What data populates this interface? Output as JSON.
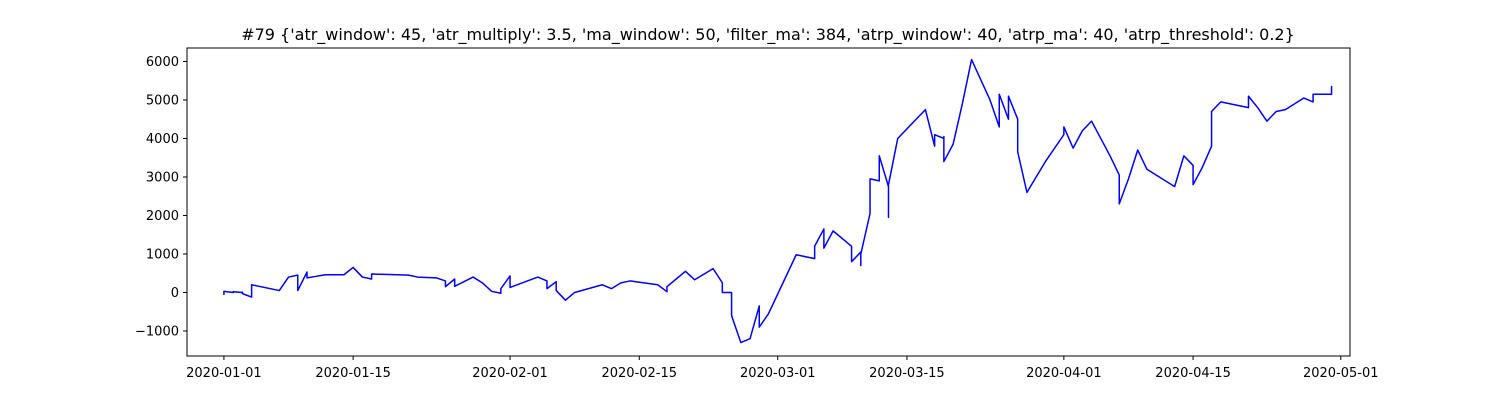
{
  "chart_data": {
    "type": "line",
    "title": "#79 {'atr_window': 45, 'atr_multiply': 3.5, 'ma_window': 50, 'filter_ma': 384, 'atrp_window': 40, 'atrp_ma': 40, 'atrp_threshold': 0.2}",
    "xlabel": "",
    "ylabel": "",
    "xlim": [
      "2019-12-28",
      "2020-05-02"
    ],
    "ylim": [
      -1650,
      6350
    ],
    "x_ticks": [
      "2020-01-01",
      "2020-01-15",
      "2020-02-01",
      "2020-02-15",
      "2020-03-01",
      "2020-03-15",
      "2020-04-01",
      "2020-04-15",
      "2020-05-01"
    ],
    "y_ticks": [
      -1000,
      0,
      1000,
      2000,
      3000,
      4000,
      5000,
      6000
    ],
    "grid": false,
    "series": [
      {
        "name": "",
        "color": "#0000ff",
        "points": [
          [
            "2020-01-01",
            0
          ],
          [
            "2020-01-01",
            -50
          ],
          [
            "2020-01-01",
            30
          ],
          [
            "2020-01-02",
            0
          ],
          [
            "2020-01-02",
            20
          ],
          [
            "2020-01-03",
            0
          ],
          [
            "2020-01-03",
            10
          ],
          [
            "2020-01-03",
            -30
          ],
          [
            "2020-01-04",
            -120
          ],
          [
            "2020-01-04",
            200
          ],
          [
            "2020-01-07",
            50
          ],
          [
            "2020-01-08",
            400
          ],
          [
            "2020-01-09",
            450
          ],
          [
            "2020-01-09",
            50
          ],
          [
            "2020-01-10",
            530
          ],
          [
            "2020-01-10",
            380
          ],
          [
            "2020-01-11",
            420
          ],
          [
            "2020-01-12",
            460
          ],
          [
            "2020-01-14",
            460
          ],
          [
            "2020-01-15",
            650
          ],
          [
            "2020-01-16",
            400
          ],
          [
            "2020-01-17",
            350
          ],
          [
            "2020-01-17",
            480
          ],
          [
            "2020-01-21",
            450
          ],
          [
            "2020-01-22",
            400
          ],
          [
            "2020-01-24",
            380
          ],
          [
            "2020-01-25",
            300
          ],
          [
            "2020-01-25",
            150
          ],
          [
            "2020-01-26",
            350
          ],
          [
            "2020-01-26",
            160
          ],
          [
            "2020-01-28",
            400
          ],
          [
            "2020-01-29",
            250
          ],
          [
            "2020-01-30",
            30
          ],
          [
            "2020-01-31",
            -20
          ],
          [
            "2020-01-31",
            100
          ],
          [
            "2020-02-01",
            430
          ],
          [
            "2020-02-01",
            130
          ],
          [
            "2020-02-04",
            400
          ],
          [
            "2020-02-05",
            300
          ],
          [
            "2020-02-05",
            100
          ],
          [
            "2020-02-06",
            280
          ],
          [
            "2020-02-06",
            50
          ],
          [
            "2020-02-07",
            -200
          ],
          [
            "2020-02-08",
            0
          ],
          [
            "2020-02-11",
            200
          ],
          [
            "2020-02-12",
            100
          ],
          [
            "2020-02-13",
            250
          ],
          [
            "2020-02-14",
            300
          ],
          [
            "2020-02-17",
            200
          ],
          [
            "2020-02-18",
            20
          ],
          [
            "2020-02-18",
            150
          ],
          [
            "2020-02-19",
            350
          ],
          [
            "2020-02-20",
            550
          ],
          [
            "2020-02-21",
            330
          ],
          [
            "2020-02-23",
            620
          ],
          [
            "2020-02-24",
            250
          ],
          [
            "2020-02-24",
            0
          ],
          [
            "2020-02-25",
            0
          ],
          [
            "2020-02-25",
            -600
          ],
          [
            "2020-02-26",
            -1300
          ],
          [
            "2020-02-27",
            -1200
          ],
          [
            "2020-02-28",
            -350
          ],
          [
            "2020-02-28",
            -900
          ],
          [
            "2020-02-29",
            -550
          ],
          [
            "2020-03-03",
            980
          ],
          [
            "2020-03-05",
            880
          ],
          [
            "2020-03-05",
            1200
          ],
          [
            "2020-03-06",
            1650
          ],
          [
            "2020-03-06",
            1150
          ],
          [
            "2020-03-07",
            1600
          ],
          [
            "2020-03-09",
            1200
          ],
          [
            "2020-03-09",
            800
          ],
          [
            "2020-03-10",
            1050
          ],
          [
            "2020-03-10",
            700
          ],
          [
            "2020-03-10",
            1000
          ],
          [
            "2020-03-11",
            2050
          ],
          [
            "2020-03-11",
            2950
          ],
          [
            "2020-03-12",
            2900
          ],
          [
            "2020-03-12",
            3550
          ],
          [
            "2020-03-13",
            2750
          ],
          [
            "2020-03-13",
            1950
          ],
          [
            "2020-03-13",
            2800
          ],
          [
            "2020-03-14",
            4000
          ],
          [
            "2020-03-17",
            4750
          ],
          [
            "2020-03-18",
            3800
          ],
          [
            "2020-03-18",
            4100
          ],
          [
            "2020-03-19",
            4000
          ],
          [
            "2020-03-19",
            4050
          ],
          [
            "2020-03-19",
            3400
          ],
          [
            "2020-03-20",
            3850
          ],
          [
            "2020-03-21",
            4900
          ],
          [
            "2020-03-22",
            6050
          ],
          [
            "2020-03-24",
            5000
          ],
          [
            "2020-03-25",
            4300
          ],
          [
            "2020-03-25",
            5150
          ],
          [
            "2020-03-26",
            4500
          ],
          [
            "2020-03-26",
            5100
          ],
          [
            "2020-03-27",
            4500
          ],
          [
            "2020-03-27",
            3650
          ],
          [
            "2020-03-28",
            2600
          ],
          [
            "2020-03-30",
            3400
          ],
          [
            "2020-04-01",
            4100
          ],
          [
            "2020-04-01",
            4300
          ],
          [
            "2020-04-02",
            3750
          ],
          [
            "2020-04-03",
            4200
          ],
          [
            "2020-04-04",
            4450
          ],
          [
            "2020-04-06",
            3550
          ],
          [
            "2020-04-07",
            3050
          ],
          [
            "2020-04-07",
            3000
          ],
          [
            "2020-04-07",
            2300
          ],
          [
            "2020-04-08",
            2950
          ],
          [
            "2020-04-09",
            3700
          ],
          [
            "2020-04-10",
            3200
          ],
          [
            "2020-04-13",
            2750
          ],
          [
            "2020-04-14",
            3550
          ],
          [
            "2020-04-15",
            3300
          ],
          [
            "2020-04-15",
            2800
          ],
          [
            "2020-04-16",
            3250
          ],
          [
            "2020-04-17",
            3800
          ],
          [
            "2020-04-17",
            4700
          ],
          [
            "2020-04-18",
            4950
          ],
          [
            "2020-04-21",
            4800
          ],
          [
            "2020-04-21",
            5100
          ],
          [
            "2020-04-22",
            4800
          ],
          [
            "2020-04-23",
            4450
          ],
          [
            "2020-04-24",
            4700
          ],
          [
            "2020-04-25",
            4750
          ],
          [
            "2020-04-27",
            5050
          ],
          [
            "2020-04-28",
            4950
          ],
          [
            "2020-04-28",
            5150
          ],
          [
            "2020-04-29",
            5150
          ],
          [
            "2020-04-30",
            5150
          ],
          [
            "2020-04-30",
            5350
          ]
        ]
      }
    ]
  }
}
